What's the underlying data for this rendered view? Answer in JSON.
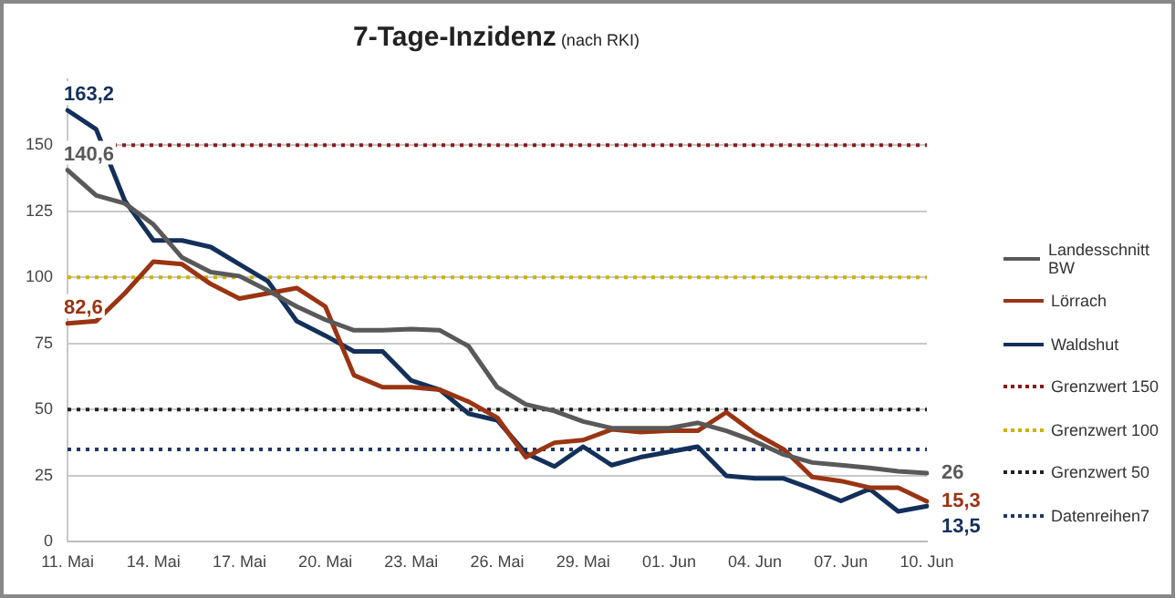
{
  "chart_data": {
    "type": "line",
    "title": "7-Tage-Inzidenz",
    "subtitle": "(nach RKI)",
    "categories": [
      "11. Mai",
      null,
      null,
      "14. Mai",
      null,
      null,
      "17. Mai",
      null,
      null,
      "20. Mai",
      null,
      null,
      "23. Mai",
      null,
      null,
      "26. Mai",
      null,
      null,
      "29. Mai",
      null,
      null,
      "01. Jun",
      null,
      null,
      "04. Jun",
      null,
      null,
      "07. Jun",
      null,
      null,
      "10. Jun"
    ],
    "series": [
      {
        "name": "Landesschnitt BW",
        "color": "#595959",
        "values": [
          140.6,
          131,
          128,
          120,
          107.5,
          102,
          100.5,
          95,
          89,
          84,
          80,
          80,
          80.5,
          80,
          74,
          58.5,
          52,
          49.5,
          45.5,
          43,
          43,
          43,
          45,
          42,
          38,
          33,
          30,
          29,
          28,
          26.7,
          26
        ],
        "value_labels": [
          "140,6",
          null,
          null,
          null,
          null,
          null,
          null,
          null,
          null,
          null,
          null,
          null,
          null,
          null,
          null,
          null,
          null,
          null,
          null,
          null,
          null,
          null,
          null,
          null,
          null,
          null,
          null,
          null,
          null,
          null,
          "26"
        ]
      },
      {
        "name": "Lörrach",
        "color": "#9a3412",
        "values": [
          82.6,
          83.5,
          94,
          106,
          105,
          97.5,
          92,
          94,
          96,
          89,
          63,
          58.5,
          58.5,
          57.5,
          53,
          47,
          32,
          37.5,
          38.5,
          42.5,
          41.5,
          42,
          42,
          49,
          41,
          35,
          24.5,
          23,
          20.5,
          20.5,
          15.3
        ],
        "value_labels": [
          "82,6",
          null,
          null,
          null,
          null,
          null,
          null,
          null,
          null,
          null,
          null,
          null,
          null,
          null,
          null,
          null,
          null,
          null,
          null,
          null,
          null,
          null,
          null,
          null,
          null,
          null,
          null,
          null,
          null,
          null,
          "15,3"
        ]
      },
      {
        "name": "Waldshut",
        "color": "#13305a",
        "values": [
          163.2,
          156,
          129,
          114,
          114,
          111.5,
          105,
          98.5,
          83.5,
          78,
          72,
          72,
          61,
          57.5,
          48.5,
          46,
          33.5,
          28.5,
          36,
          29,
          32,
          34,
          36,
          25,
          24,
          24,
          20,
          15.5,
          20,
          11.5,
          13.5
        ],
        "value_labels": [
          "163,2",
          null,
          null,
          null,
          null,
          null,
          null,
          null,
          null,
          null,
          null,
          null,
          null,
          null,
          null,
          null,
          null,
          null,
          null,
          null,
          null,
          null,
          null,
          null,
          null,
          null,
          null,
          null,
          null,
          null,
          "13,5"
        ]
      }
    ],
    "ref_lines": [
      {
        "axis": "y",
        "value": 150,
        "label": "Grenzwert 150",
        "color": "#8b1a1a",
        "line_style": "dotted"
      },
      {
        "axis": "y",
        "value": 100,
        "label": "Grenzwert 100",
        "color": "#c9b400",
        "line_style": "dotted"
      },
      {
        "axis": "y",
        "value": 50,
        "label": "Grenzwert 50",
        "color": "#222222",
        "line_style": "dotted"
      },
      {
        "axis": "y",
        "value": 35,
        "label": "Datenreihen7",
        "color": "#1f3864",
        "line_style": "dotted"
      }
    ],
    "ylim": [
      0,
      175
    ],
    "yticks": [
      0,
      25,
      50,
      75,
      100,
      125,
      150
    ],
    "grid": "y",
    "legend": "right",
    "marker": "none",
    "line_style": "solid"
  }
}
